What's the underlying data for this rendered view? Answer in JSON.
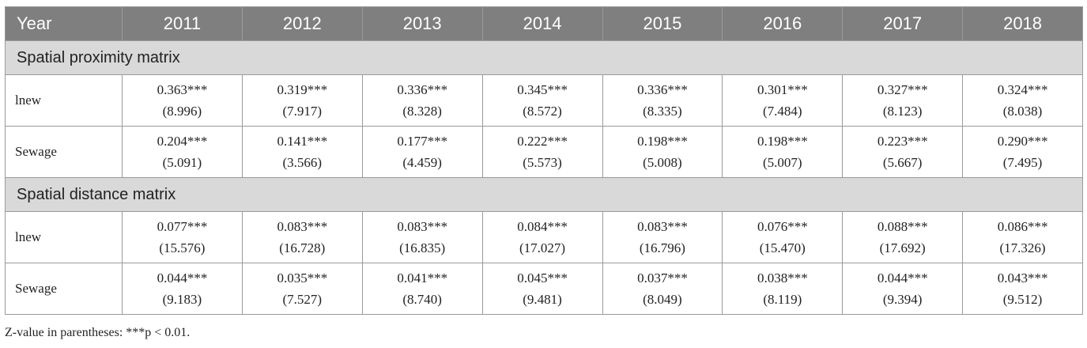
{
  "header": {
    "year_label": "Year",
    "years": [
      "2011",
      "2012",
      "2013",
      "2014",
      "2015",
      "2016",
      "2017",
      "2018"
    ]
  },
  "sections": [
    {
      "title": "Spatial proximity matrix",
      "rows": [
        {
          "label": "lnew",
          "coef": [
            "0.363***",
            "0.319***",
            "0.336***",
            "0.345***",
            "0.336***",
            "0.301***",
            "0.327***",
            "0.324***"
          ],
          "z": [
            "(8.996)",
            "(7.917)",
            "(8.328)",
            "(8.572)",
            "(8.335)",
            "(7.484)",
            "(8.123)",
            "(8.038)"
          ]
        },
        {
          "label": "Sewage",
          "coef": [
            "0.204***",
            "0.141***",
            "0.177***",
            "0.222***",
            "0.198***",
            "0.198***",
            "0.223***",
            "0.290***"
          ],
          "z": [
            "(5.091)",
            "(3.566)",
            "(4.459)",
            "(5.573)",
            "(5.008)",
            "(5.007)",
            "(5.667)",
            "(7.495)"
          ]
        }
      ]
    },
    {
      "title": "Spatial distance matrix",
      "rows": [
        {
          "label": "lnew",
          "coef": [
            "0.077***",
            "0.083***",
            "0.083***",
            "0.084***",
            "0.083***",
            "0.076***",
            "0.088***",
            "0.086***"
          ],
          "z": [
            "(15.576)",
            "(16.728)",
            "(16.835)",
            "(17.027)",
            "(16.796)",
            "(15.470)",
            "(17.692)",
            "(17.326)"
          ]
        },
        {
          "label": "Sewage",
          "coef": [
            "0.044***",
            "0.035***",
            "0.041***",
            "0.045***",
            "0.037***",
            "0.038***",
            "0.044***",
            "0.043***"
          ],
          "z": [
            "(9.183)",
            "(7.527)",
            "(8.740)",
            "(9.481)",
            "(8.049)",
            "(8.119)",
            "(9.394)",
            "(9.512)"
          ]
        }
      ]
    }
  ],
  "footnote": "Z-value in parentheses: ***p < 0.01."
}
